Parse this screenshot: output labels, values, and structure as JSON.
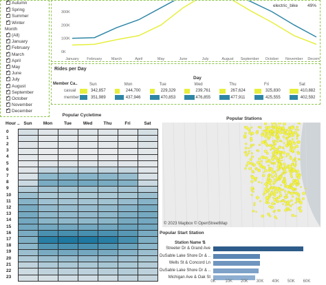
{
  "filters": {
    "season_items": [
      "Autumn",
      "Spring",
      "Summer",
      "Winter"
    ],
    "month_header": "Month",
    "month_items": [
      "(All)",
      "January",
      "February",
      "March",
      "April",
      "May",
      "June",
      "July",
      "August",
      "September",
      "October",
      "November",
      "December"
    ]
  },
  "line_chart": {
    "type": "line",
    "legend_label": "electric_bike",
    "legend_value": "49%",
    "y_ticks": [
      "300K",
      "200K",
      "100K",
      "0K"
    ],
    "categories": [
      "January",
      "February",
      "March",
      "April",
      "May",
      "June",
      "July",
      "August",
      "September",
      "October",
      "November",
      "December"
    ],
    "series": [
      {
        "color": "#2e86a6",
        "values": [
          100000,
          105000,
          180000,
          240000,
          330000,
          420000,
          455000,
          445000,
          380000,
          300000,
          200000,
          110000
        ]
      },
      {
        "color": "#e6ef3c",
        "values": [
          50000,
          55000,
          90000,
          120000,
          200000,
          330000,
          430000,
          410000,
          310000,
          220000,
          120000,
          55000
        ]
      }
    ],
    "colors": {
      "member": "#2e86a6",
      "casual": "#e6ef3c"
    }
  },
  "rides_per_day": {
    "title": "Rides per Day",
    "column_header": "Day",
    "row_header": "Member Ca..",
    "days": [
      "Sun",
      "Mon",
      "Tue",
      "Wed",
      "Thu",
      "Fri",
      "Sat"
    ],
    "rows": [
      {
        "label": "casual",
        "color": "#e6ef3c",
        "values": [
          "342,857",
          "244,700",
          "229,329",
          "239,761",
          "267,624",
          "325,830",
          "410,882"
        ]
      },
      {
        "label": "member",
        "color": "#2e86a6",
        "values": [
          "351,989",
          "437,946",
          "470,853",
          "476,855",
          "477,911",
          "425,555",
          "402,592"
        ]
      }
    ]
  },
  "cycletime": {
    "title": "Popular Cycletime",
    "hour_header": "Hour ..",
    "days": [
      "Sun",
      "Mon",
      "Tue",
      "Wed",
      "Thu",
      "Fri",
      "Sat"
    ],
    "hours": [
      "0",
      "1",
      "2",
      "3",
      "4",
      "5",
      "6",
      "7",
      "8",
      "9",
      "10",
      "11",
      "12",
      "13",
      "14",
      "15",
      "16",
      "17",
      "18",
      "19",
      "20",
      "21",
      "22",
      "23"
    ],
    "intensity": [
      [
        0.1,
        0.05,
        0.05,
        0.05,
        0.05,
        0.05,
        0.1
      ],
      [
        0.08,
        0.02,
        0.02,
        0.02,
        0.02,
        0.02,
        0.08
      ],
      [
        0.05,
        0.01,
        0.01,
        0.01,
        0.01,
        0.02,
        0.06
      ],
      [
        0.03,
        0.0,
        0.0,
        0.0,
        0.0,
        0.01,
        0.03
      ],
      [
        0.02,
        0.0,
        0.0,
        0.0,
        0.0,
        0.0,
        0.02
      ],
      [
        0.02,
        0.05,
        0.05,
        0.05,
        0.05,
        0.04,
        0.02
      ],
      [
        0.04,
        0.2,
        0.22,
        0.22,
        0.2,
        0.18,
        0.04
      ],
      [
        0.08,
        0.45,
        0.48,
        0.48,
        0.46,
        0.4,
        0.08
      ],
      [
        0.15,
        0.55,
        0.58,
        0.58,
        0.55,
        0.5,
        0.15
      ],
      [
        0.25,
        0.35,
        0.35,
        0.35,
        0.34,
        0.33,
        0.25
      ],
      [
        0.38,
        0.3,
        0.3,
        0.3,
        0.3,
        0.32,
        0.38
      ],
      [
        0.48,
        0.36,
        0.34,
        0.34,
        0.35,
        0.4,
        0.48
      ],
      [
        0.55,
        0.42,
        0.4,
        0.4,
        0.42,
        0.48,
        0.55
      ],
      [
        0.57,
        0.44,
        0.42,
        0.42,
        0.44,
        0.52,
        0.57
      ],
      [
        0.58,
        0.46,
        0.44,
        0.44,
        0.46,
        0.56,
        0.58
      ],
      [
        0.58,
        0.58,
        0.58,
        0.58,
        0.58,
        0.62,
        0.58
      ],
      [
        0.55,
        0.78,
        0.8,
        0.8,
        0.78,
        0.72,
        0.55
      ],
      [
        0.52,
        0.95,
        1.0,
        1.0,
        0.95,
        0.8,
        0.52
      ],
      [
        0.45,
        0.75,
        0.78,
        0.78,
        0.75,
        0.62,
        0.45
      ],
      [
        0.38,
        0.55,
        0.58,
        0.58,
        0.56,
        0.48,
        0.38
      ],
      [
        0.28,
        0.38,
        0.4,
        0.4,
        0.4,
        0.36,
        0.3
      ],
      [
        0.2,
        0.28,
        0.3,
        0.3,
        0.32,
        0.3,
        0.26
      ],
      [
        0.14,
        0.2,
        0.22,
        0.22,
        0.24,
        0.26,
        0.22
      ],
      [
        0.1,
        0.1,
        0.12,
        0.12,
        0.14,
        0.2,
        0.18
      ]
    ]
  },
  "stations_map": {
    "title": "Popular Stations",
    "attribution": "© 2023 Mapbox  © OpenStreetMap",
    "dot_color": "#f4f53a"
  },
  "start_station": {
    "title": "Popular Start Station",
    "header": "Station Name",
    "stations": [
      {
        "name": "Streeter Dr & Grand Ave",
        "value": 58000
      },
      {
        "name": "DuSable Lake Shore Dr & ..",
        "value": 30000
      },
      {
        "name": "Wells St & Concord Ln",
        "value": 30000
      },
      {
        "name": "DuSable Lake Shore Dr & ..",
        "value": 29000
      },
      {
        "name": "Michigan Ave & Oak St",
        "value": 27000
      }
    ],
    "x_ticks": [
      "0K",
      "10K",
      "20K",
      "30K",
      "40K",
      "50K",
      "60K"
    ],
    "x_max": 60000,
    "colors": [
      "#2e5c8a",
      "#5b86b4",
      "#6f95bf",
      "#7ea1c8",
      "#8daed0"
    ]
  }
}
